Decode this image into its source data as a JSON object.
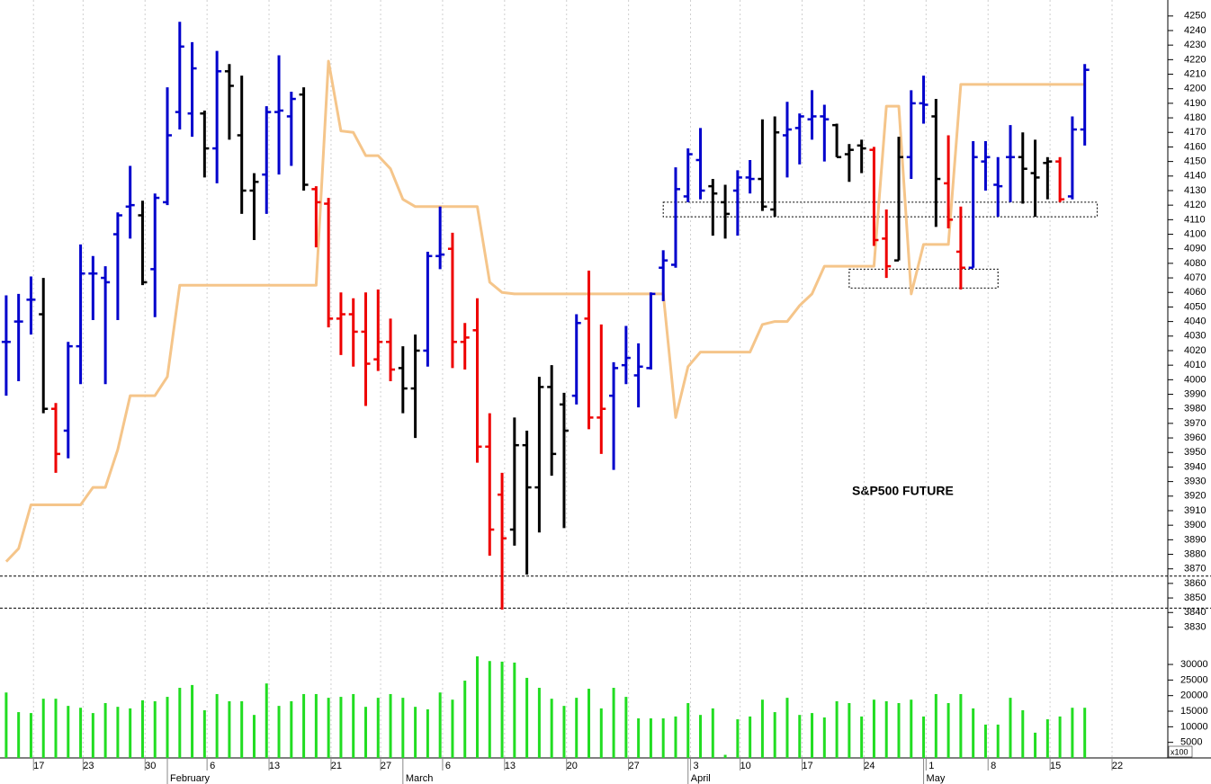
{
  "chart_data": [
    {
      "type": "ohlc",
      "title": "S&P500 FUTURE",
      "xlim": [
        -0.5,
        93.7
      ],
      "ylim": [
        3821,
        4261
      ],
      "yticks": [
        3830,
        3840,
        3850,
        3860,
        3870,
        3880,
        3890,
        3900,
        3910,
        3920,
        3930,
        3940,
        3950,
        3960,
        3970,
        3980,
        3990,
        4000,
        4010,
        4020,
        4030,
        4040,
        4050,
        4060,
        4070,
        4080,
        4090,
        4100,
        4110,
        4120,
        4130,
        4140,
        4150,
        4160,
        4170,
        4180,
        4190,
        4200,
        4210,
        4220,
        4230,
        4240,
        4250
      ],
      "open": [
        4026,
        4040,
        4055,
        4045,
        3980,
        3965,
        4023,
        4073,
        4070,
        4100,
        4119,
        4113,
        4076,
        4122,
        4184,
        4183,
        4183,
        4159,
        4212,
        4168,
        4130,
        4141,
        4184,
        4181,
        4196,
        4131,
        4121,
        4042,
        4045,
        4033,
        4014,
        4026,
        4008,
        3994,
        4020,
        4085,
        4090,
        4026,
        4034,
        3954,
        3921,
        3897,
        3955,
        3926,
        3995,
        3983,
        3989,
        4042,
        3974,
        3989,
        4010,
        4003,
        4008,
        4077,
        4079,
        4126,
        4151,
        4133,
        4122,
        4130,
        4139,
        4138,
        4117,
        4168,
        4173,
        4179,
        4181,
        4175,
        4155,
        4161,
        4158,
        4097,
        4082,
        4153,
        4190,
        4181,
        4135,
        4088,
        4077,
        4150,
        4134,
        4153,
        4153,
        4142,
        4149,
        4150,
        4126,
        4172
      ],
      "high": [
        4058,
        4059,
        4071,
        4070,
        3984,
        4026,
        4093,
        4085,
        4078,
        4115,
        4147,
        4123,
        4128,
        4201,
        4246,
        4232,
        4185,
        4226,
        4217,
        4209,
        4142,
        4188,
        4223,
        4198,
        4201,
        4133,
        4125,
        4060,
        4056,
        4060,
        4062,
        4042,
        4023,
        4031,
        4088,
        4119,
        4101,
        4039,
        4056,
        3977,
        3936,
        3974,
        3965,
        4002,
        4010,
        3991,
        4045,
        4075,
        4038,
        4012,
        4037,
        4025,
        4060,
        4089,
        4146,
        4159,
        4173,
        4138,
        4134,
        4144,
        4151,
        4179,
        4181,
        4191,
        4183,
        4199,
        4189,
        4176,
        4162,
        4165,
        4160,
        4117,
        4167,
        4199,
        4209,
        4193,
        4168,
        4119,
        4164,
        4164,
        4153,
        4175,
        4170,
        4165,
        4153,
        4153,
        4181,
        4217
      ],
      "low": [
        3989,
        3999,
        4031,
        3977,
        3936,
        3946,
        3997,
        4041,
        3997,
        4041,
        4097,
        4065,
        4043,
        4120,
        4172,
        4167,
        4139,
        4135,
        4165,
        4114,
        4096,
        4114,
        4141,
        4147,
        4130,
        4091,
        4036,
        4017,
        4009,
        3982,
        4006,
        3999,
        3977,
        3960,
        4009,
        4076,
        4008,
        4007,
        3943,
        3879,
        3842,
        3886,
        3866,
        3895,
        3934,
        3898,
        3983,
        3966,
        3949,
        3938,
        3997,
        3981,
        4007,
        4054,
        4077,
        4122,
        4124,
        4099,
        4097,
        4099,
        4128,
        4116,
        4112,
        4139,
        4148,
        4165,
        4150,
        4153,
        4136,
        4142,
        4092,
        4070,
        4082,
        4138,
        4176,
        4105,
        4104,
        4062,
        4077,
        4130,
        4112,
        4122,
        4121,
        4112,
        4124,
        4122,
        4124,
        4161
      ],
      "close": [
        4026,
        4040,
        4055,
        3980,
        3949,
        4023,
        4073,
        4073,
        4067,
        4113,
        4120,
        4067,
        4125,
        4168,
        4229,
        4214,
        4159,
        4212,
        4202,
        4130,
        4136,
        4184,
        4185,
        4193,
        4134,
        4122,
        4042,
        4045,
        4033,
        4011,
        4026,
        4007,
        3994,
        4020,
        4085,
        4086,
        4026,
        4029,
        3954,
        3897,
        3891,
        3955,
        3926,
        3995,
        3949,
        3965,
        4039,
        3974,
        3980,
        4008,
        4015,
        4009,
        4059,
        4082,
        4131,
        4155,
        4130,
        4128,
        4114,
        4139,
        4138,
        4119,
        4170,
        4172,
        4181,
        4181,
        4179,
        4153,
        4158,
        4159,
        4096,
        4078,
        4153,
        4190,
        4189,
        4138,
        4110,
        4077,
        4153,
        4153,
        4133,
        4153,
        4145,
        4139,
        4150,
        4124,
        4172,
        4213
      ],
      "colors": [
        "#0000cc",
        "#0000cc",
        "#0000cc",
        "#000000",
        "#ee0000",
        "#0000cc",
        "#0000cc",
        "#0000cc",
        "#0000cc",
        "#0000cc",
        "#0000cc",
        "#000000",
        "#0000cc",
        "#0000cc",
        "#0000cc",
        "#0000cc",
        "#000000",
        "#0000cc",
        "#000000",
        "#000000",
        "#000000",
        "#0000cc",
        "#0000cc",
        "#0000cc",
        "#000000",
        "#ee0000",
        "#ee0000",
        "#ee0000",
        "#ee0000",
        "#ee0000",
        "#ee0000",
        "#ee0000",
        "#000000",
        "#000000",
        "#0000cc",
        "#0000cc",
        "#ee0000",
        "#ee0000",
        "#ee0000",
        "#ee0000",
        "#ee0000",
        "#000000",
        "#000000",
        "#000000",
        "#000000",
        "#000000",
        "#0000cc",
        "#ee0000",
        "#ee0000",
        "#0000cc",
        "#0000cc",
        "#0000cc",
        "#0000cc",
        "#0000cc",
        "#0000cc",
        "#0000cc",
        "#0000cc",
        "#000000",
        "#000000",
        "#0000cc",
        "#0000cc",
        "#000000",
        "#000000",
        "#0000cc",
        "#0000cc",
        "#0000cc",
        "#0000cc",
        "#000000",
        "#000000",
        "#000000",
        "#ee0000",
        "#ee0000",
        "#000000",
        "#0000cc",
        "#0000cc",
        "#000000",
        "#ee0000",
        "#ee0000",
        "#0000cc",
        "#0000cc",
        "#0000cc",
        "#0000cc",
        "#000000",
        "#000000",
        "#000000",
        "#ee0000",
        "#0000cc",
        "#0000cc"
      ],
      "stop": {
        "color": "#f5c58a",
        "values": [
          3875,
          3884,
          3914,
          3914,
          3914,
          3914,
          3914,
          3926,
          3926,
          3952,
          3989,
          3989,
          3989,
          4002,
          4065,
          4065,
          4065,
          4065,
          4065,
          4065,
          4065,
          4065,
          4065,
          4065,
          4065,
          4065,
          4219,
          4171,
          4170,
          4154,
          4154,
          4145,
          4124,
          4119,
          4119,
          4119,
          4119,
          4119,
          4119,
          4067,
          4060,
          4059,
          4059,
          4059,
          4059,
          4059,
          4059,
          4059,
          4059,
          4059,
          4059,
          4059,
          4059,
          4059,
          3974,
          4009,
          4019,
          4019,
          4019,
          4019,
          4019,
          4038,
          4040,
          4040,
          4051,
          4059,
          4078,
          4078,
          4078,
          4078,
          4078,
          4188,
          4188,
          4059,
          4093,
          4093,
          4093,
          4203,
          4203,
          4203,
          4203,
          4203,
          4203,
          4203,
          4203,
          4203,
          4203,
          4203
        ]
      },
      "levels": [
        3865,
        3843
      ],
      "zones": [
        {
          "x": [
            53,
            88
          ],
          "y": [
            4112,
            4122
          ]
        },
        {
          "x": [
            68,
            80
          ],
          "y": [
            4063,
            4076
          ]
        }
      ]
    },
    {
      "type": "bar",
      "color": "#22dd22",
      "unit": "x100",
      "xlim": [
        -0.5,
        93.7
      ],
      "ylim": [
        0,
        37800
      ],
      "yticks": [
        5000,
        10000,
        15000,
        20000,
        25000,
        30000
      ],
      "values": [
        21000,
        14700,
        14400,
        19000,
        19000,
        16700,
        16100,
        14400,
        17600,
        16400,
        15900,
        18500,
        18200,
        19600,
        22500,
        23400,
        15300,
        20500,
        18200,
        18200,
        13800,
        23900,
        16700,
        18200,
        20500,
        20500,
        19300,
        19600,
        20500,
        16400,
        19300,
        20500,
        19300,
        16400,
        15600,
        21000,
        18700,
        24800,
        32600,
        31100,
        30900,
        30600,
        25700,
        22500,
        19000,
        16700,
        19300,
        22200,
        15900,
        22500,
        19600,
        12700,
        12700,
        12700,
        13300,
        17600,
        13800,
        15900,
        1000,
        12400,
        13300,
        18700,
        14700,
        19300,
        13800,
        14400,
        13000,
        18200,
        17600,
        13300,
        18700,
        18200,
        17600,
        18700,
        13300,
        20500,
        17600,
        20500,
        15900,
        10700,
        10700,
        19300,
        15300,
        8100,
        12400,
        13300,
        16100,
        16100
      ],
      "xticks": [
        {
          "value": 3,
          "label": "17"
        },
        {
          "value": 7,
          "label": "23"
        },
        {
          "value": 12,
          "label": "30"
        },
        {
          "value": 17,
          "label": "6"
        },
        {
          "value": 22,
          "label": "13"
        },
        {
          "value": 27,
          "label": "21"
        },
        {
          "value": 31,
          "label": "27"
        },
        {
          "value": 36,
          "label": "6"
        },
        {
          "value": 41,
          "label": "13"
        },
        {
          "value": 46,
          "label": "20"
        },
        {
          "value": 51,
          "label": "27"
        },
        {
          "value": 56,
          "label": "3"
        },
        {
          "value": 60,
          "label": "10"
        },
        {
          "value": 65,
          "label": "17"
        },
        {
          "value": 70,
          "label": "24"
        },
        {
          "value": 75,
          "label": "1"
        },
        {
          "value": 80,
          "label": "8"
        },
        {
          "value": 85,
          "label": "15"
        },
        {
          "value": 90,
          "label": "22"
        }
      ],
      "months": [
        {
          "value": 13,
          "label": "February"
        },
        {
          "value": 32,
          "label": "March"
        },
        {
          "value": 55,
          "label": "April"
        },
        {
          "value": 74,
          "label": "May"
        }
      ],
      "grid": true
    }
  ]
}
